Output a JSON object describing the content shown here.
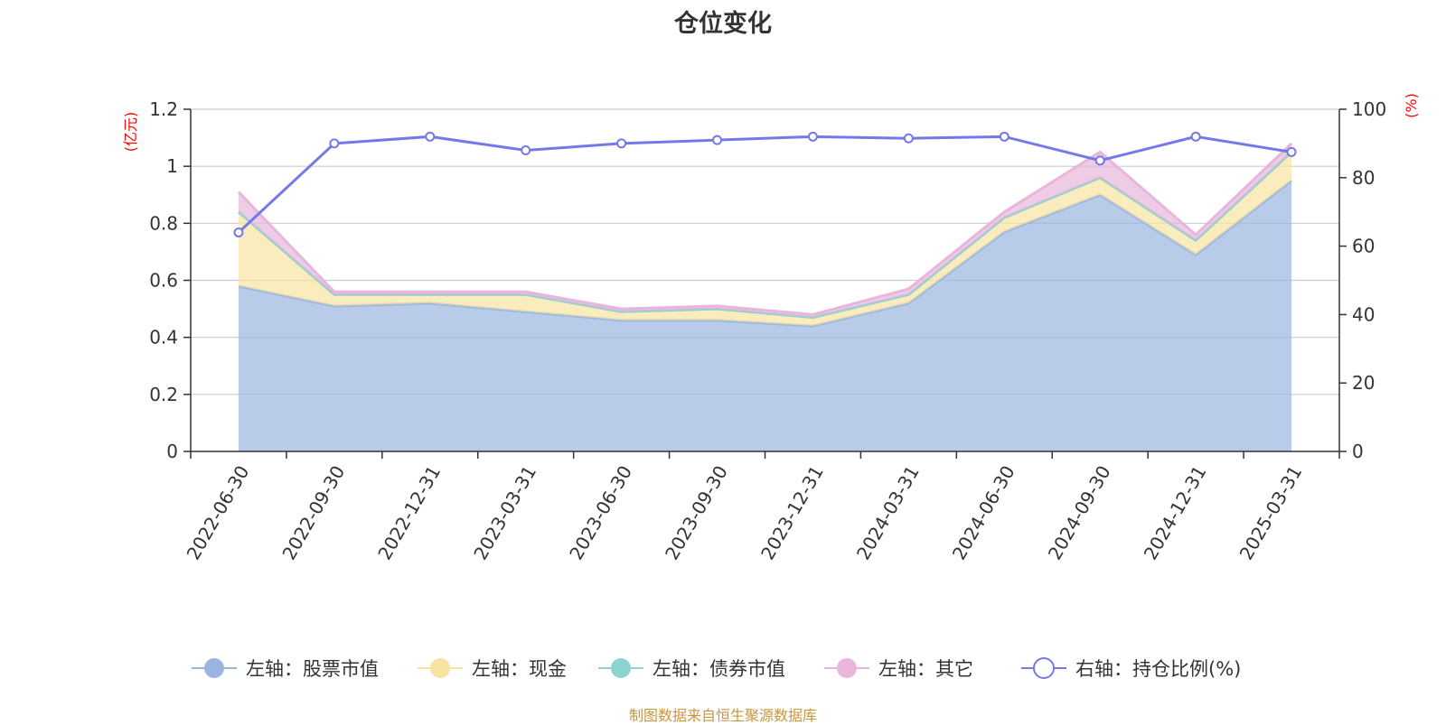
{
  "chart_data": {
    "type": "area",
    "title": "仓位变化",
    "left_axis_unit": "(亿元)",
    "right_axis_unit": "(%)",
    "categories": [
      "2022-06-30",
      "2022-09-30",
      "2022-12-31",
      "2023-03-31",
      "2023-06-30",
      "2023-09-30",
      "2023-12-31",
      "2024-03-31",
      "2024-06-30",
      "2024-09-30",
      "2024-12-31",
      "2025-03-31"
    ],
    "left_ylim": [
      0,
      1.2
    ],
    "left_ticks": [
      "0",
      "0.2",
      "0.4",
      "0.6",
      "0.8",
      "1",
      "1.2"
    ],
    "right_ylim": [
      0,
      100
    ],
    "right_ticks": [
      "0",
      "20",
      "40",
      "60",
      "80",
      "100"
    ],
    "grid": true,
    "legend_position": "bottom",
    "series": [
      {
        "name": "左轴：股票市值",
        "axis": "left",
        "kind": "stacked-area",
        "color": "#9ab6e0",
        "values": [
          0.58,
          0.51,
          0.52,
          0.49,
          0.46,
          0.46,
          0.44,
          0.52,
          0.77,
          0.9,
          0.69,
          0.95
        ]
      },
      {
        "name": "左轴：现金",
        "axis": "left",
        "kind": "stacked-area",
        "color": "#f8e4a0",
        "values": [
          0.26,
          0.04,
          0.03,
          0.06,
          0.03,
          0.04,
          0.03,
          0.03,
          0.05,
          0.06,
          0.05,
          0.1
        ]
      },
      {
        "name": "左轴：债券市值",
        "axis": "left",
        "kind": "stacked-area",
        "color": "#8fd3d0",
        "values": [
          0,
          0,
          0,
          0,
          0,
          0,
          0,
          0,
          0,
          0,
          0,
          0
        ]
      },
      {
        "name": "左轴：其它",
        "axis": "left",
        "kind": "stacked-area",
        "color": "#e8b6dc",
        "values": [
          0.07,
          0.01,
          0.01,
          0.01,
          0.01,
          0.01,
          0.01,
          0.02,
          0.02,
          0.09,
          0.02,
          0.03
        ]
      },
      {
        "name": "右轴：持仓比例(%)",
        "axis": "right",
        "kind": "line",
        "color": "#7479e8",
        "values": [
          64,
          90,
          92,
          88,
          90,
          91,
          92,
          91.5,
          92,
          85,
          92,
          87.5
        ]
      }
    ]
  },
  "source_note": "制图数据来自恒生聚源数据库"
}
